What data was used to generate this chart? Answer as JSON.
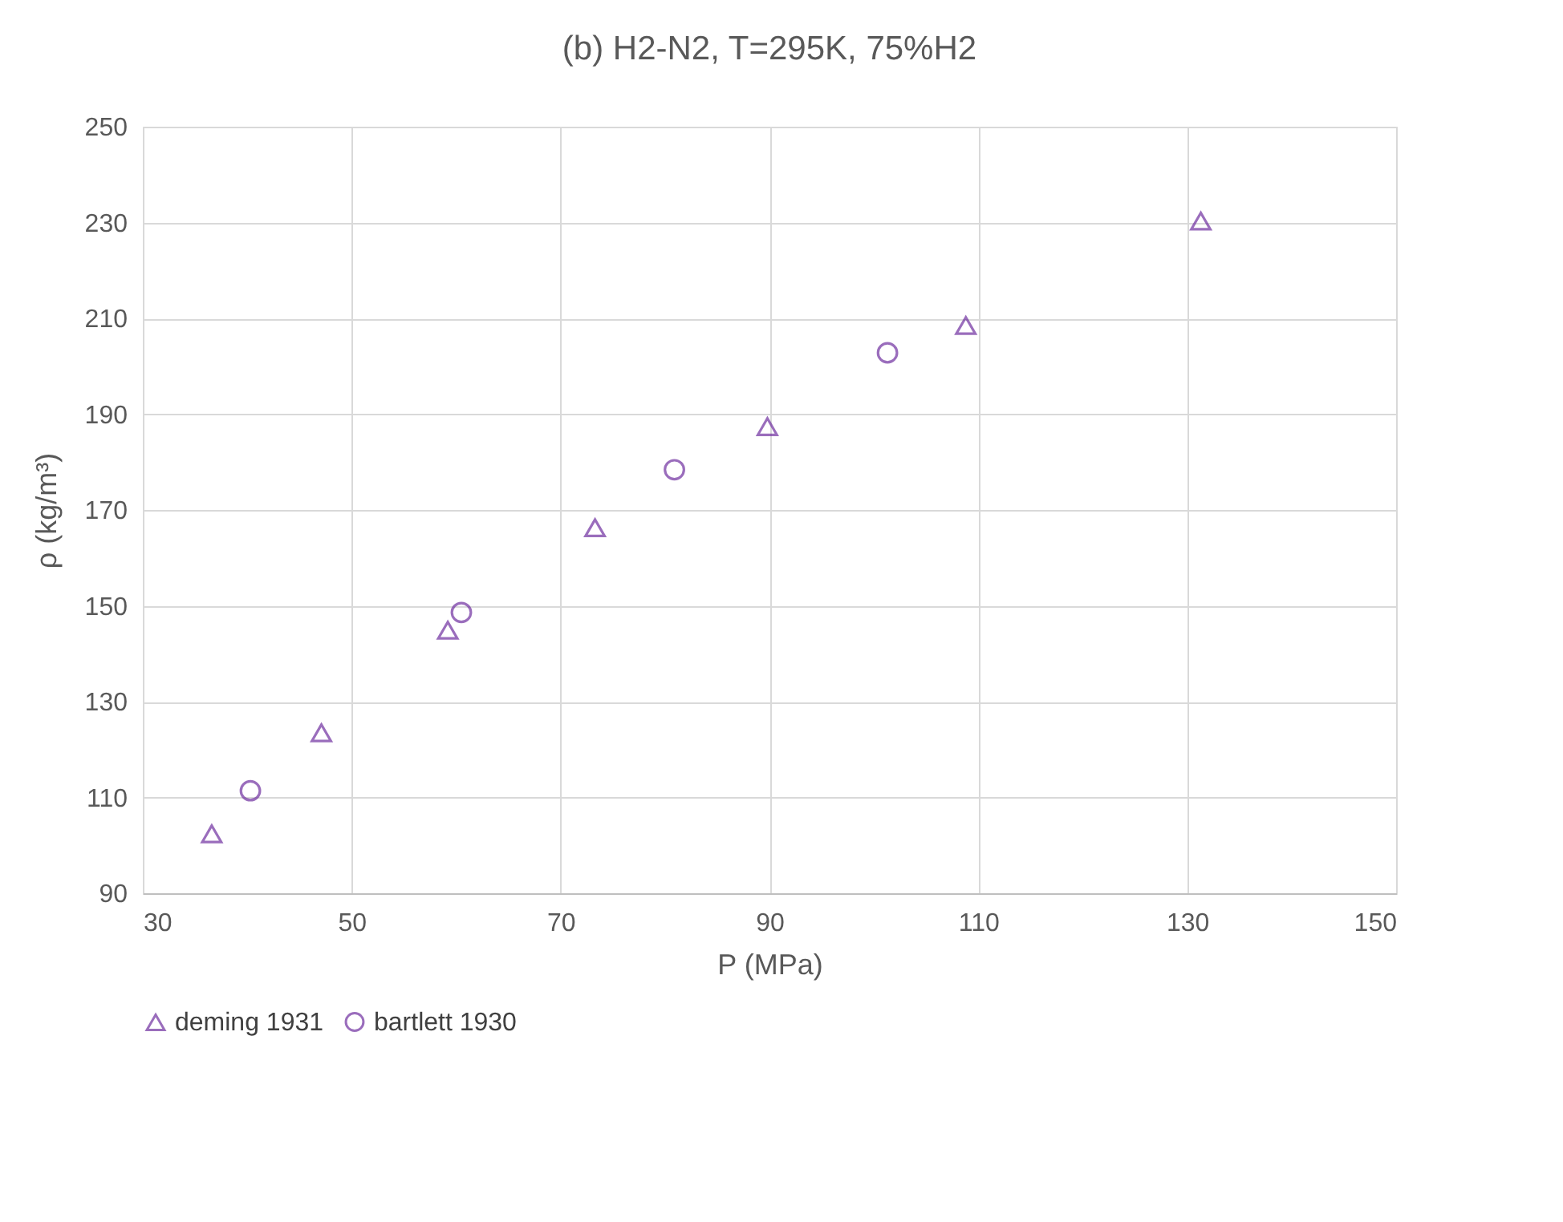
{
  "chart_data": {
    "type": "scatter",
    "title": "(b) H2-N2, T=295K, 75%H2",
    "xlabel": "P (MPa)",
    "ylabel": "ρ (kg/m³)",
    "xlim": [
      30,
      150
    ],
    "xticks": [
      30,
      50,
      70,
      90,
      110,
      130,
      150
    ],
    "ylim": [
      90,
      250
    ],
    "yticks": [
      90,
      110,
      130,
      150,
      170,
      190,
      210,
      230,
      250
    ],
    "grid": true,
    "legend": "bottom",
    "series": [
      {
        "name": "deming 1931",
        "color": "#7030a0",
        "marker": "triangle",
        "x": [
          36.6,
          47.1,
          59.2,
          73.3,
          89.8,
          108.8,
          131.3
        ],
        "values": [
          102.4,
          123.5,
          144.9,
          166.3,
          187.4,
          208.5,
          230.3
        ]
      },
      {
        "name": "bartlett 1930",
        "color": "#7030a0",
        "marker": "circle",
        "x": [
          40.3,
          60.5,
          80.9,
          101.3
        ],
        "values": [
          111.4,
          148.6,
          178.4,
          202.8
        ]
      }
    ]
  }
}
